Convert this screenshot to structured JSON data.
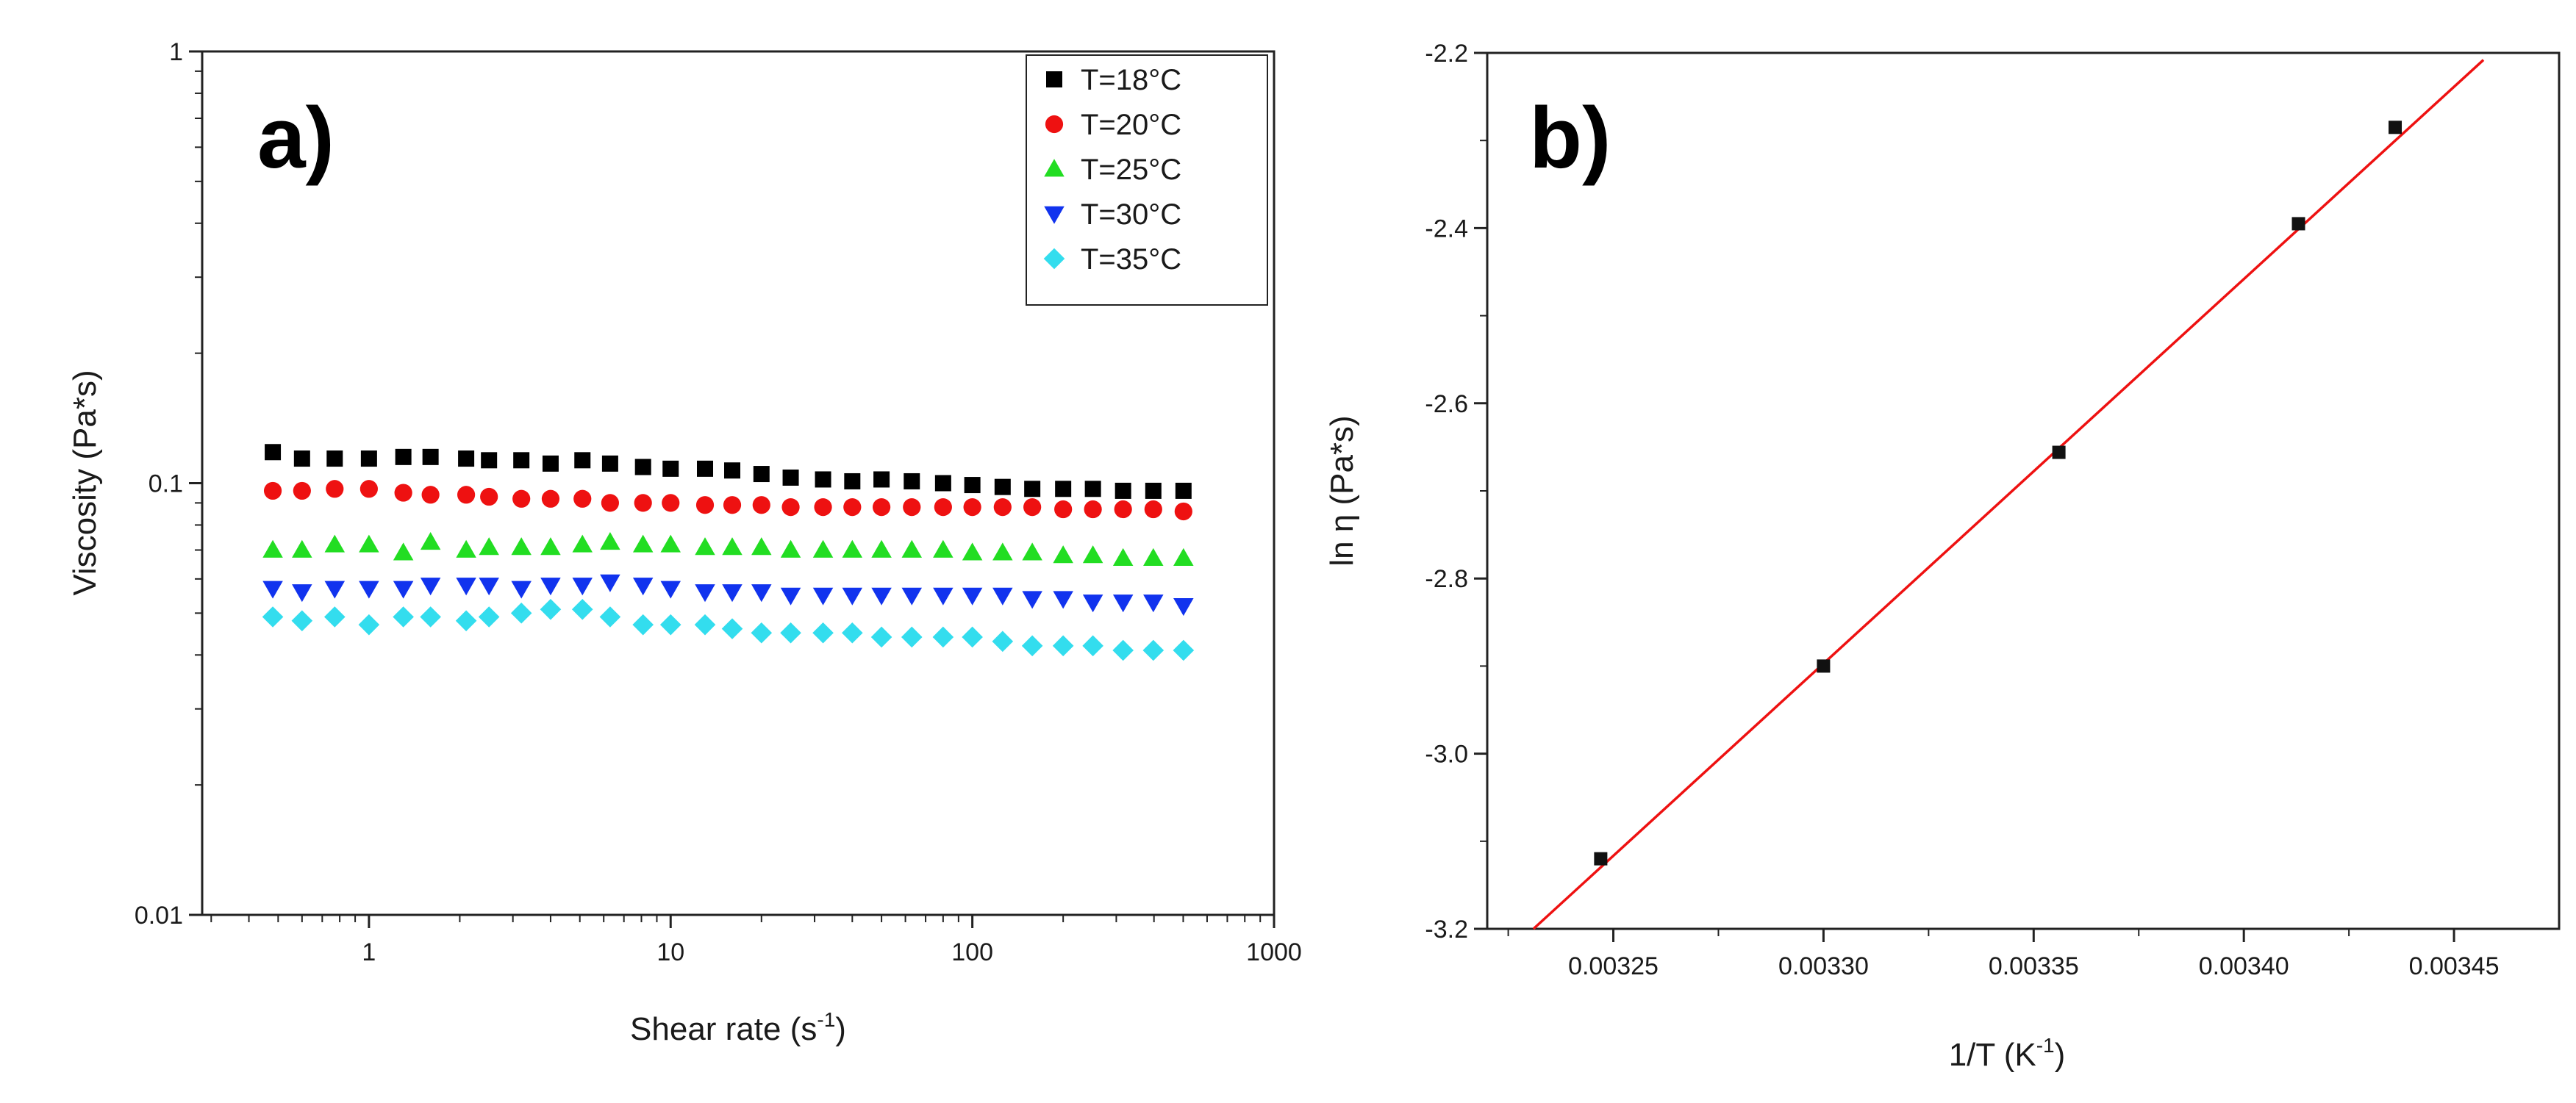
{
  "chart_data": [
    {
      "type": "scatter",
      "panel_label": "a)",
      "xlabel": "Shear rate (s",
      "xlabel_sup": "-1",
      "xlabel_end": ")",
      "ylabel": "Viscosity (Pa*s)",
      "xscale": "log",
      "yscale": "log",
      "xlim": [
        0.28,
        1000
      ],
      "ylim": [
        0.01,
        1
      ],
      "x_ticks": [
        1,
        10,
        100,
        1000
      ],
      "x_tick_labels": [
        "1",
        "10",
        "100",
        "1000"
      ],
      "y_ticks": [
        0.01,
        0.1,
        1
      ],
      "y_tick_labels": [
        "0.01",
        "0.1",
        "1"
      ],
      "legend_position": "top-right",
      "x": [
        0.48,
        0.6,
        0.77,
        1.0,
        1.3,
        1.6,
        2.1,
        2.5,
        3.2,
        4.0,
        5.1,
        6.3,
        8.1,
        10.0,
        13.0,
        16.0,
        20.0,
        25.0,
        32.0,
        40.0,
        50.0,
        63.0,
        80.0,
        100.0,
        126.0,
        158.0,
        200.0,
        251.0,
        316.0,
        398.0,
        501.0
      ],
      "series": [
        {
          "name": "T=18°C",
          "marker": "square",
          "color": "#000000",
          "values": [
            0.118,
            0.114,
            0.114,
            0.114,
            0.115,
            0.115,
            0.114,
            0.113,
            0.113,
            0.111,
            0.113,
            0.111,
            0.109,
            0.108,
            0.108,
            0.107,
            0.105,
            0.103,
            0.102,
            0.101,
            0.102,
            0.101,
            0.1,
            0.099,
            0.098,
            0.097,
            0.097,
            0.097,
            0.096,
            0.096,
            0.096
          ]
        },
        {
          "name": "T=20°C",
          "marker": "circle",
          "color": "#ee1111",
          "values": [
            0.096,
            0.096,
            0.097,
            0.097,
            0.095,
            0.094,
            0.094,
            0.093,
            0.092,
            0.092,
            0.092,
            0.09,
            0.09,
            0.09,
            0.089,
            0.089,
            0.089,
            0.088,
            0.088,
            0.088,
            0.088,
            0.088,
            0.088,
            0.088,
            0.088,
            0.088,
            0.087,
            0.087,
            0.087,
            0.087,
            0.086
          ]
        },
        {
          "name": "T=25°C",
          "marker": "triangle-up",
          "color": "#22dd22",
          "values": [
            0.07,
            0.07,
            0.072,
            0.072,
            0.069,
            0.073,
            0.07,
            0.071,
            0.071,
            0.071,
            0.072,
            0.073,
            0.072,
            0.072,
            0.071,
            0.071,
            0.071,
            0.07,
            0.07,
            0.07,
            0.07,
            0.07,
            0.07,
            0.069,
            0.069,
            0.069,
            0.068,
            0.068,
            0.067,
            0.067,
            0.067
          ]
        },
        {
          "name": "T=30°C",
          "marker": "triangle-down",
          "color": "#1133ee",
          "values": [
            0.057,
            0.056,
            0.057,
            0.057,
            0.057,
            0.058,
            0.058,
            0.058,
            0.057,
            0.058,
            0.058,
            0.059,
            0.058,
            0.057,
            0.056,
            0.056,
            0.056,
            0.055,
            0.055,
            0.055,
            0.055,
            0.055,
            0.055,
            0.055,
            0.055,
            0.054,
            0.054,
            0.053,
            0.053,
            0.053,
            0.052
          ]
        },
        {
          "name": "T=35°C",
          "marker": "diamond",
          "color": "#33ddee",
          "values": [
            0.049,
            0.048,
            0.049,
            0.047,
            0.049,
            0.049,
            0.048,
            0.049,
            0.05,
            0.051,
            0.051,
            0.049,
            0.047,
            0.047,
            0.047,
            0.046,
            0.045,
            0.045,
            0.045,
            0.045,
            0.044,
            0.044,
            0.044,
            0.044,
            0.043,
            0.042,
            0.042,
            0.042,
            0.041,
            0.041,
            0.041
          ]
        }
      ]
    },
    {
      "type": "scatter",
      "panel_label": "b)",
      "xlabel": "1/T (K",
      "xlabel_sup": "-1",
      "xlabel_end": ")",
      "ylabel": "ln η (Pa*s)",
      "xlim": [
        0.00322,
        0.003475
      ],
      "ylim": [
        -3.2,
        -2.2
      ],
      "x_ticks": [
        0.00325,
        0.0033,
        0.00335,
        0.0034,
        0.00345
      ],
      "x_tick_labels": [
        "0.00325",
        "0.00330",
        "0.00335",
        "0.00340",
        "0.00345"
      ],
      "y_ticks": [
        -3.2,
        -3.0,
        -2.8,
        -2.6,
        -2.4,
        -2.2
      ],
      "y_tick_labels": [
        "-3.2",
        "-3.0",
        "-2.8",
        "-2.6",
        "-2.4",
        "-2.2"
      ],
      "points": {
        "x": [
          0.003247,
          0.0033,
          0.003356,
          0.003413,
          0.003436
        ],
        "y": [
          -3.12,
          -2.9,
          -2.656,
          -2.395,
          -2.285
        ]
      },
      "fit_line": {
        "color": "#ee1111",
        "x": [
          0.003231,
          0.003457
        ],
        "y": [
          -3.2,
          -2.208
        ]
      }
    }
  ]
}
